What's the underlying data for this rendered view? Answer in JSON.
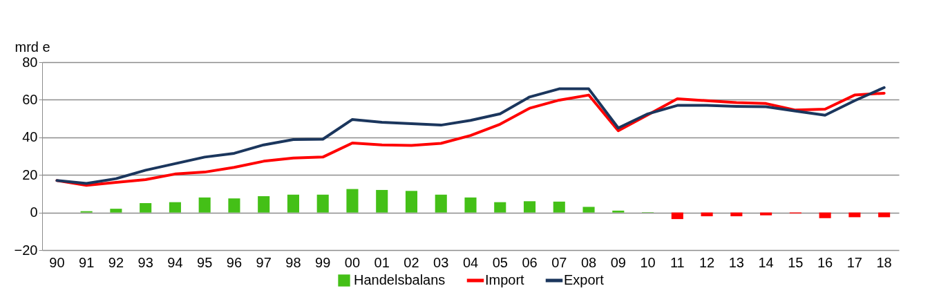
{
  "chart_data": {
    "type": "bar",
    "ylabel": "mrd e",
    "categories": [
      "90",
      "91",
      "92",
      "93",
      "94",
      "95",
      "96",
      "97",
      "98",
      "99",
      "00",
      "01",
      "02",
      "03",
      "04",
      "05",
      "06",
      "07",
      "08",
      "09",
      "10",
      "11",
      "12",
      "13",
      "14",
      "15",
      "16",
      "17",
      "18"
    ],
    "series": [
      {
        "name": "Handelsbalans",
        "color": "#44c017",
        "values": [
          null,
          0.7,
          2,
          5,
          5.5,
          8,
          7.5,
          8.7,
          9.5,
          9.5,
          12.5,
          12,
          11.5,
          9.5,
          8,
          5.5,
          6,
          5.8,
          3,
          1,
          0.2,
          -3.5,
          -2,
          -2,
          -1.5,
          -0.5,
          -3,
          -2.5,
          -2.5
        ],
        "colors": [
          "#ff0000",
          "#44c017",
          "#44c017",
          "#44c017",
          "#44c017",
          "#44c017",
          "#44c017",
          "#44c017",
          "#44c017",
          "#44c017",
          "#44c017",
          "#44c017",
          "#44c017",
          "#44c017",
          "#44c017",
          "#44c017",
          "#44c017",
          "#44c017",
          "#44c017",
          "#44c017",
          "#44c017",
          "#ff0000",
          "#ff0000",
          "#ff0000",
          "#ff0000",
          "#ff0000",
          "#ff0000",
          "#ff0000",
          "#ff0000"
        ]
      },
      {
        "name": "Import",
        "type": "line",
        "color": "#ff0000",
        "values": [
          17,
          14.5,
          16,
          17.5,
          20.5,
          21.5,
          24,
          27.3,
          29,
          29.5,
          37,
          36,
          35.7,
          36.8,
          41,
          47,
          55.5,
          59.8,
          62.5,
          43.5,
          52,
          60.5,
          59.5,
          58.5,
          58,
          54.5,
          55,
          62.5,
          63.5
        ]
      },
      {
        "name": "Export",
        "type": "line",
        "color": "#1b365d",
        "values": [
          17,
          15.5,
          18,
          22.5,
          26,
          29.5,
          31.5,
          36,
          38.8,
          39,
          49.5,
          48,
          47.3,
          46.5,
          49,
          52.5,
          61.5,
          65.8,
          65.8,
          45,
          52.5,
          57,
          57,
          56.5,
          56.3,
          54,
          51.8,
          59.5,
          66.5
        ]
      }
    ],
    "ylim": [
      -20,
      80
    ],
    "yticks": [
      -20,
      0,
      20,
      40,
      60,
      80
    ],
    "grid": "y",
    "legend": "bottom"
  }
}
